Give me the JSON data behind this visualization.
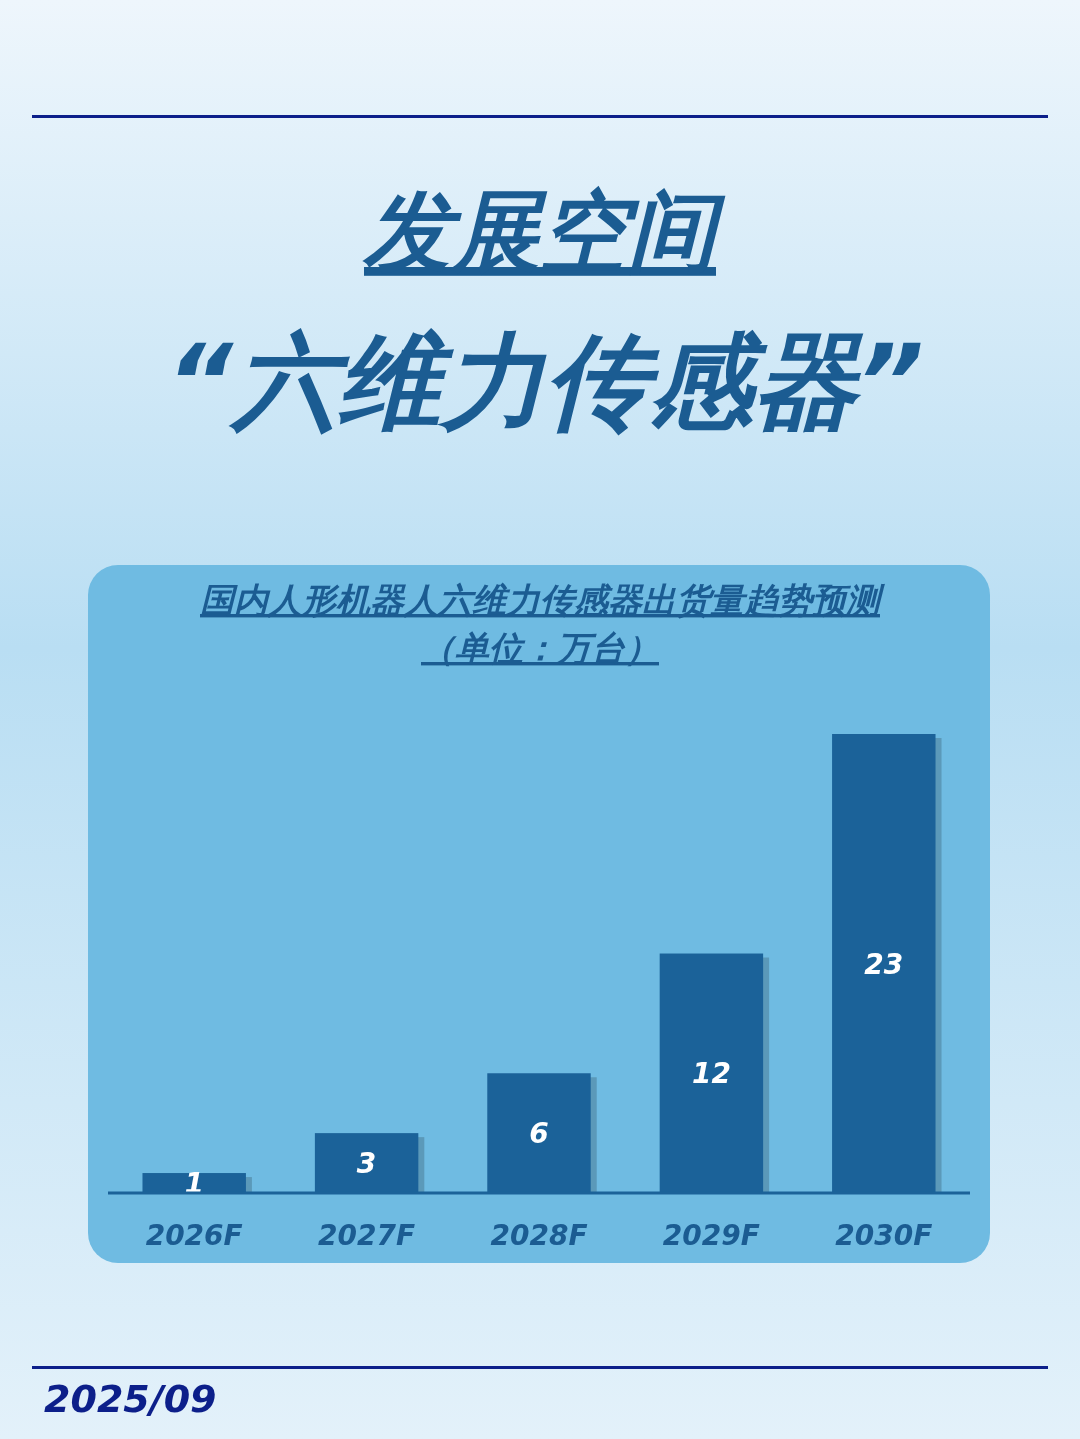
{
  "chart_data": {
    "type": "bar",
    "title": "国内人形机器人六维力传感器出货量趋势预测",
    "subtitle": "（单位：万台）",
    "categories": [
      "2026F",
      "2027F",
      "2028F",
      "2029F",
      "2030F"
    ],
    "values": [
      1,
      3,
      6,
      12,
      23
    ],
    "color": "#1b6299",
    "data_labels": true,
    "annotations": [
      "发展空间",
      "“六维力传感器”",
      "2025/09"
    ]
  }
}
